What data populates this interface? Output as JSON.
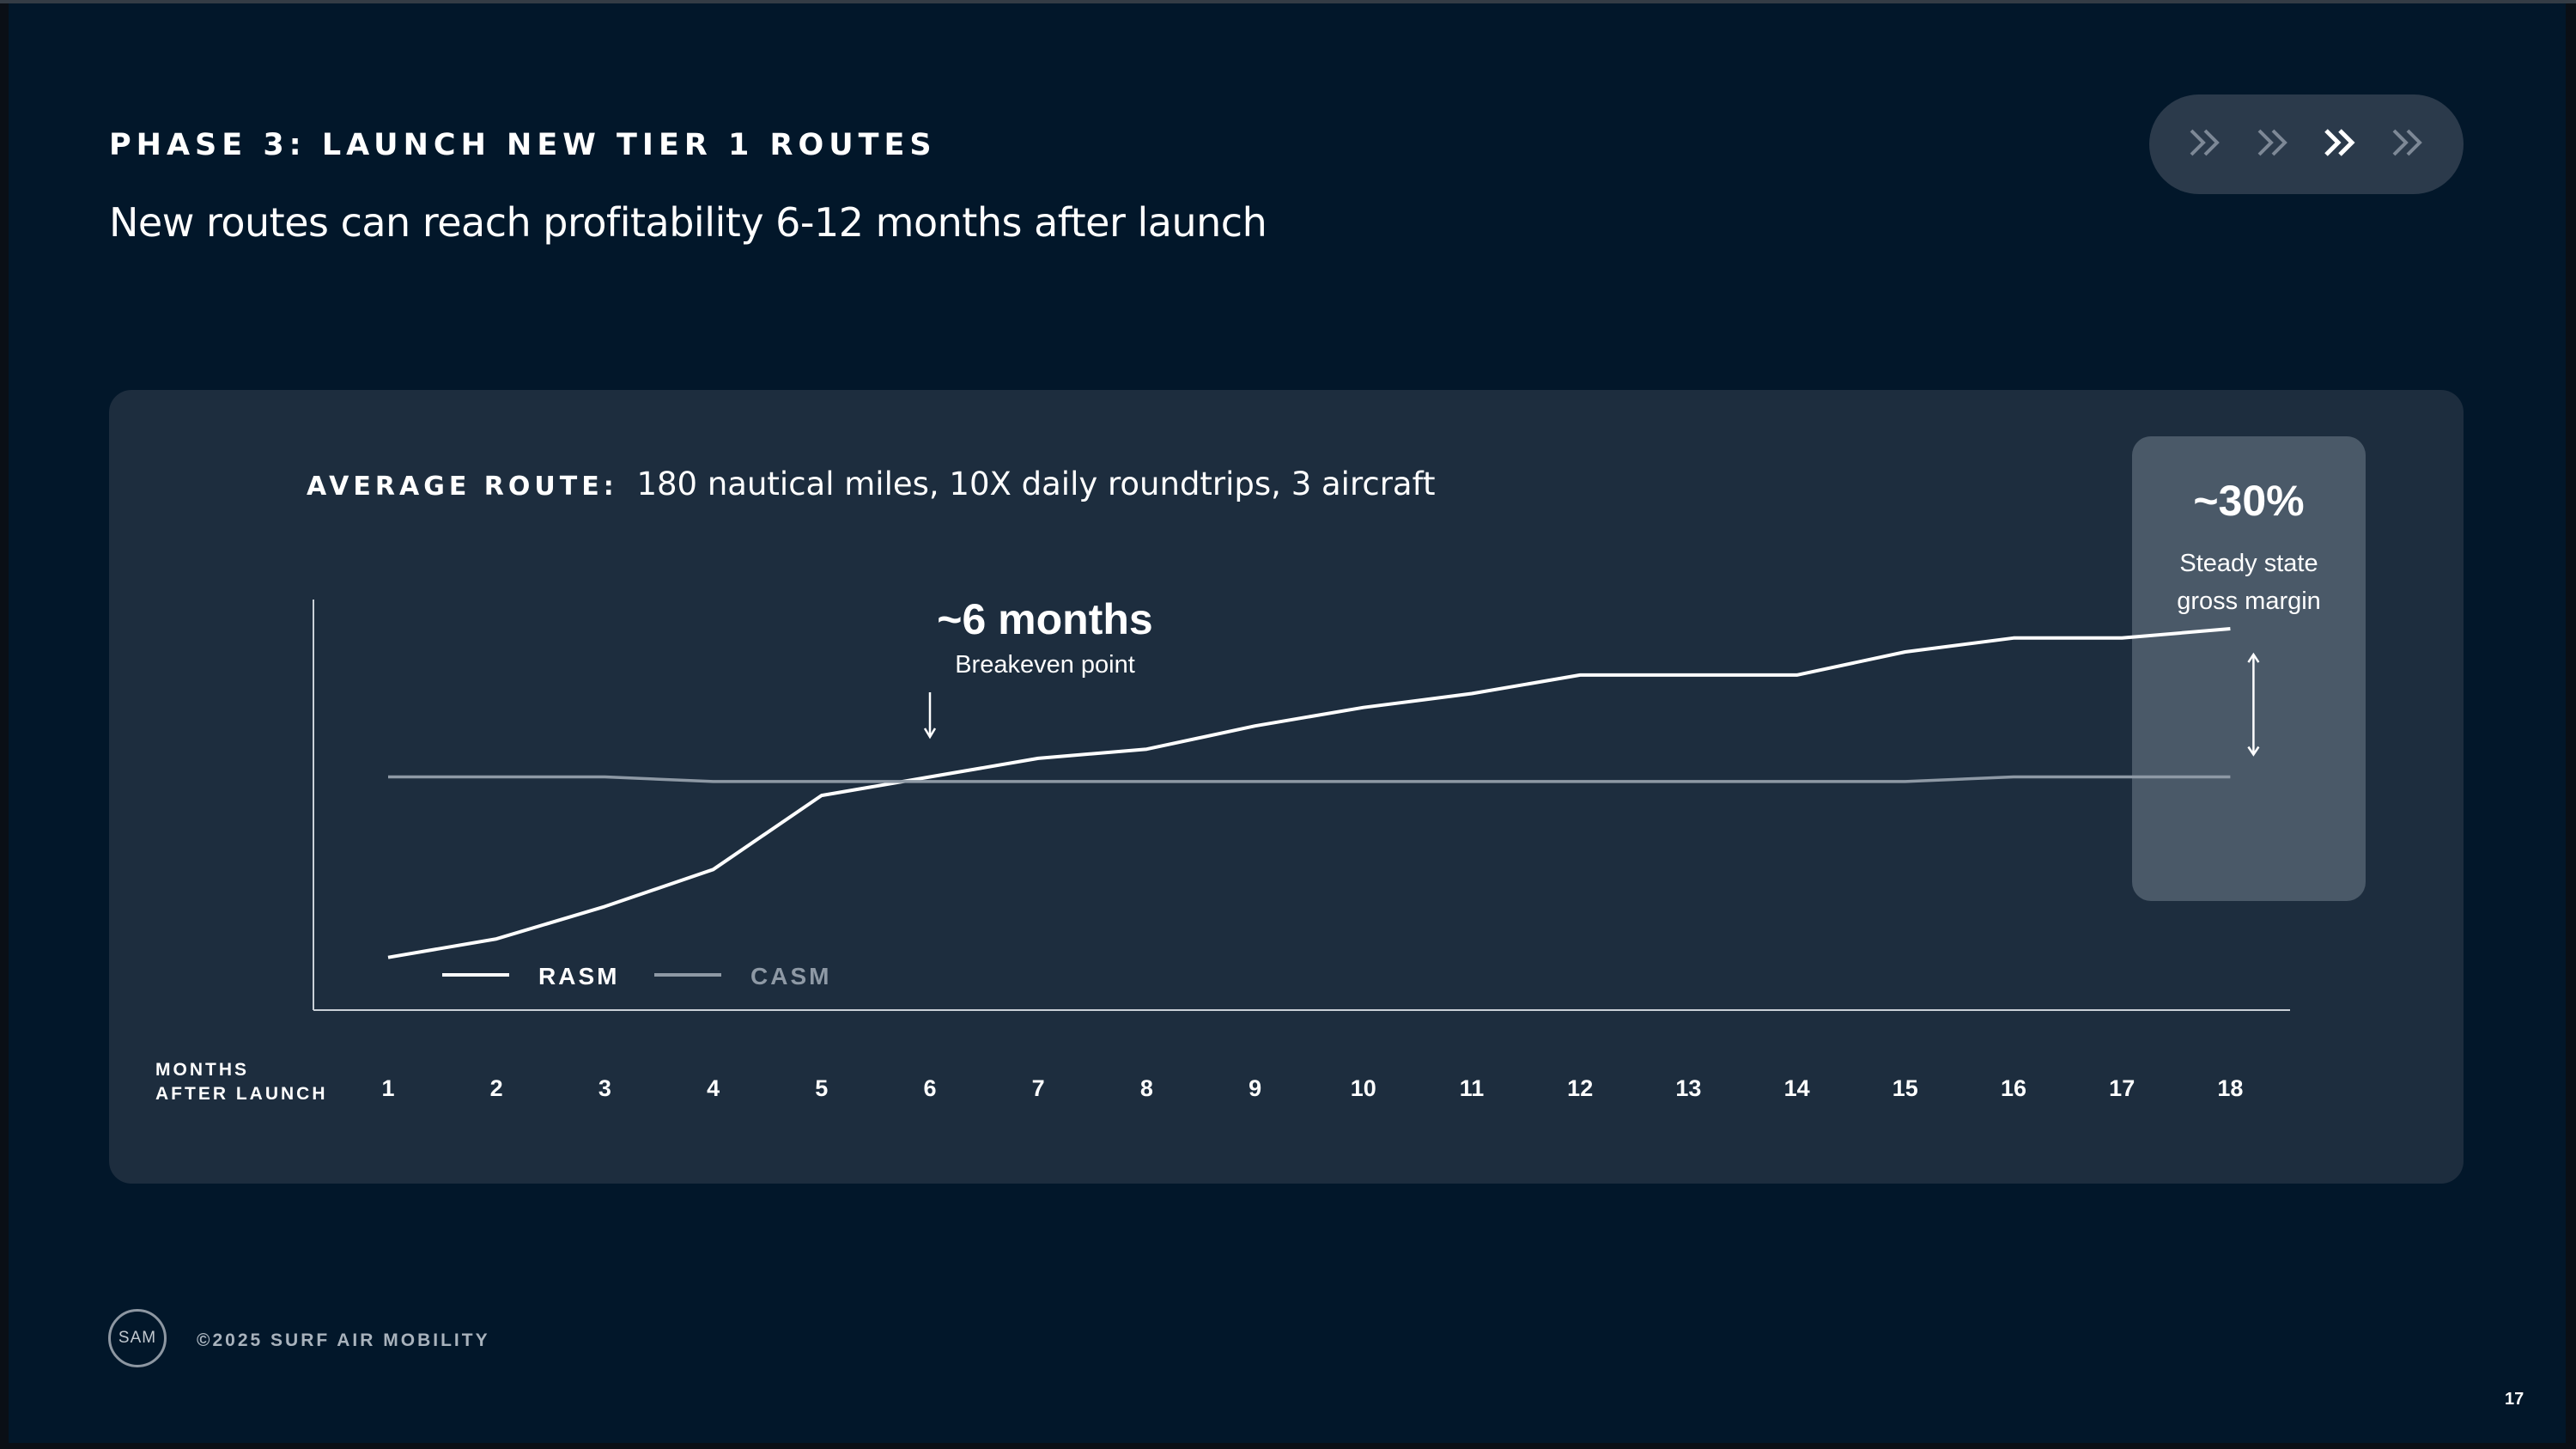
{
  "slide": {
    "title": "PHASE 3: LAUNCH NEW TIER 1 ROUTES",
    "subtitle": "New routes can reach profitability 6-12 months after launch",
    "phase_indicator": {
      "icon": "double-chevron-right-icon",
      "count": 4,
      "active_index": 2
    },
    "footer": {
      "logo_text": "SAM",
      "copyright": "©2025 SURF AIR MOBILITY"
    },
    "page_number": "17"
  },
  "panel": {
    "route_label": "AVERAGE ROUTE:",
    "route_text": "180 nautical miles, 10X daily roundtrips, 3 aircraft",
    "breakeven": {
      "title": "~6 months",
      "subtitle": "Breakeven point"
    },
    "steady_state": {
      "value": "~30%",
      "label_line1": "Steady state",
      "label_line2": "gross margin"
    },
    "x_header_line1": "MONTHS",
    "x_header_line2": "AFTER LAUNCH"
  },
  "colors": {
    "background": "#02172a",
    "panel": "#1d2d3e",
    "highlight": "#4a5968",
    "rasm": "#ffffff",
    "casm": "#8e99a5"
  },
  "chart_data": {
    "type": "line",
    "x": [
      1,
      2,
      3,
      4,
      5,
      6,
      7,
      8,
      9,
      10,
      11,
      12,
      13,
      14,
      15,
      16,
      17,
      18
    ],
    "xlabel": "MONTHS AFTER LAUNCH",
    "ylabel": "",
    "y_axis_ticks": false,
    "legend": {
      "placement": "bottom-left",
      "entries": [
        "RASM",
        "CASM"
      ]
    },
    "series": [
      {
        "name": "RASM",
        "color": "#ffffff",
        "values": [
          0.61,
          0.65,
          0.72,
          0.8,
          0.96,
          1.0,
          1.04,
          1.06,
          1.11,
          1.15,
          1.18,
          1.22,
          1.22,
          1.22,
          1.27,
          1.3,
          1.3,
          1.32
        ]
      },
      {
        "name": "CASM",
        "color": "#8e99a5",
        "values": [
          1.0,
          1.0,
          1.0,
          0.99,
          0.99,
          0.99,
          0.99,
          0.99,
          0.99,
          0.99,
          0.99,
          0.99,
          0.99,
          0.99,
          0.99,
          1.0,
          1.0,
          1.0
        ]
      }
    ],
    "annotations": [
      {
        "x": 6,
        "text": "~6 months",
        "subtext": "Breakeven point"
      },
      {
        "x": 18,
        "text": "~30%",
        "subtext": "Steady state gross margin"
      }
    ],
    "ylim": [
      0.5,
      1.5
    ]
  }
}
